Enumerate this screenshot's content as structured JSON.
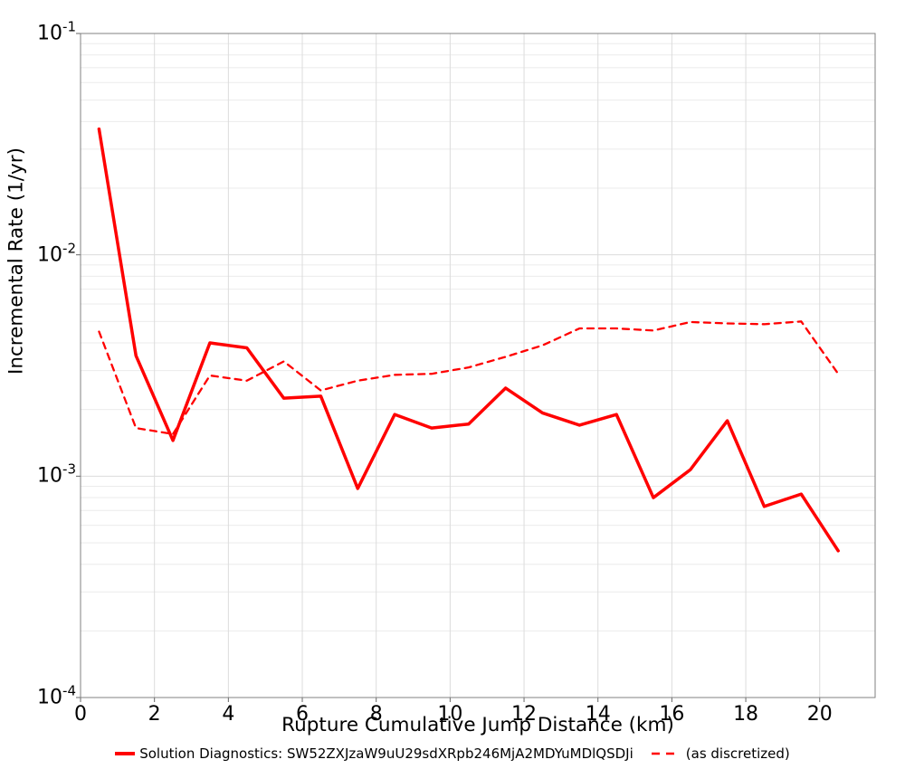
{
  "chart_data": {
    "type": "line",
    "title": "",
    "xlabel": "Rupture Cumulative Jump Distance (km)",
    "ylabel": "Incremental Rate (1/yr)",
    "xlim": [
      0,
      21.5
    ],
    "ylim_log10": [
      -4,
      -1
    ],
    "x_ticks": [
      0,
      2,
      4,
      6,
      8,
      10,
      12,
      14,
      16,
      18,
      20
    ],
    "y_tick_base": "10",
    "y_tick_exponents": [
      "-1",
      "-2",
      "-3",
      "-4"
    ],
    "grid": "horizontal log minor+major lines, vertical lines at even km",
    "legend_position": "bottom-center",
    "x": [
      0.5,
      1.5,
      2.5,
      3.5,
      4.5,
      5.5,
      6.5,
      7.5,
      8.5,
      9.5,
      10.5,
      11.5,
      12.5,
      13.5,
      14.5,
      15.5,
      16.5,
      17.5,
      18.5,
      19.5,
      20.5
    ],
    "series": [
      {
        "name": "Solution Diagnostics: SW52ZXJzaW9uU29sdXRpb246MjA2MDYuMDlQSDJi",
        "style": "solid",
        "color": "#ff0000",
        "line_width": 3.5,
        "values": [
          0.037,
          0.0035,
          0.00145,
          0.004,
          0.0038,
          0.00225,
          0.0023,
          0.00088,
          0.0019,
          0.00165,
          0.00172,
          0.0025,
          0.00193,
          0.0017,
          0.0019,
          0.0008,
          0.00107,
          0.00178,
          0.00073,
          0.00083,
          0.00046
        ]
      },
      {
        "name": "(as discretized)",
        "style": "dashed",
        "color": "#ff0000",
        "line_width": 2.3,
        "values": [
          0.0045,
          0.00165,
          0.00155,
          0.00285,
          0.0027,
          0.0033,
          0.00244,
          0.0027,
          0.00287,
          0.0029,
          0.0031,
          0.00346,
          0.0039,
          0.00465,
          0.00465,
          0.00455,
          0.00497,
          0.0049,
          0.00486,
          0.005,
          0.0029
        ]
      }
    ],
    "colors": {
      "series_red": "#ff0000",
      "plot_border": "#808080",
      "grid_minor": "#ebebeb",
      "grid_major": "#dcdcdc",
      "tick_mark": "#666666",
      "background": "#ffffff"
    }
  }
}
